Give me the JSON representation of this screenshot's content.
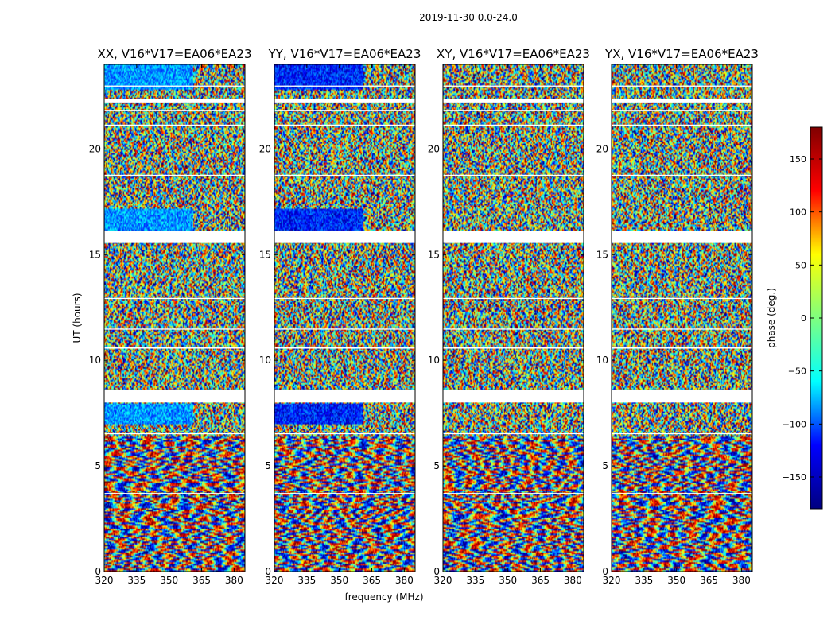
{
  "figure": {
    "suptitle": "2019-11-30 0.0-24.0"
  },
  "chart_data": {
    "type": "heatmap",
    "x_label": "frequency (MHz)",
    "y_label": "UT (hours)",
    "xlim": [
      320,
      385
    ],
    "ylim": [
      0,
      24
    ],
    "x_ticks": [
      320,
      335,
      350,
      365,
      380
    ],
    "y_ticks": [
      0,
      5,
      10,
      15,
      20
    ],
    "colorbar": {
      "label": "phase (deg.)",
      "range": [
        -180,
        180
      ],
      "ticks": [
        150,
        100,
        50,
        0,
        -50,
        -100,
        -150
      ],
      "tick_labels": [
        "150",
        "100",
        "50",
        "0",
        "−50",
        "−100",
        "−150"
      ],
      "colormap": "jet",
      "colors": [
        "#000080",
        "#0000ff",
        "#00ffff",
        "#7fff7f",
        "#ffff00",
        "#ff0000",
        "#800000"
      ]
    },
    "panels": [
      {
        "title": "XX, V16*V17=EA06*EA23",
        "polarization": "XX",
        "show_ylabel": true,
        "show_xlabel": false
      },
      {
        "title": "YY, V16*V17=EA06*EA23",
        "polarization": "YY",
        "show_ylabel": false,
        "show_xlabel": true
      },
      {
        "title": "XY, V16*V17=EA06*EA23",
        "polarization": "XY",
        "show_ylabel": false,
        "show_xlabel": false
      },
      {
        "title": "YX, V16*V17=EA06*EA23",
        "polarization": "YX",
        "show_ylabel": false,
        "show_xlabel": false
      }
    ],
    "flagged_time_ranges_hours": [
      [
        3.65,
        3.72
      ],
      [
        6.5,
        6.55
      ],
      [
        8.0,
        8.6
      ],
      [
        10.55,
        10.62
      ],
      [
        11.45,
        11.5
      ],
      [
        12.9,
        12.95
      ],
      [
        15.55,
        16.1
      ],
      [
        18.7,
        18.78
      ],
      [
        21.1,
        21.15
      ],
      [
        21.8,
        21.85
      ],
      [
        22.2,
        22.35
      ],
      [
        22.95,
        23.0
      ]
    ]
  }
}
